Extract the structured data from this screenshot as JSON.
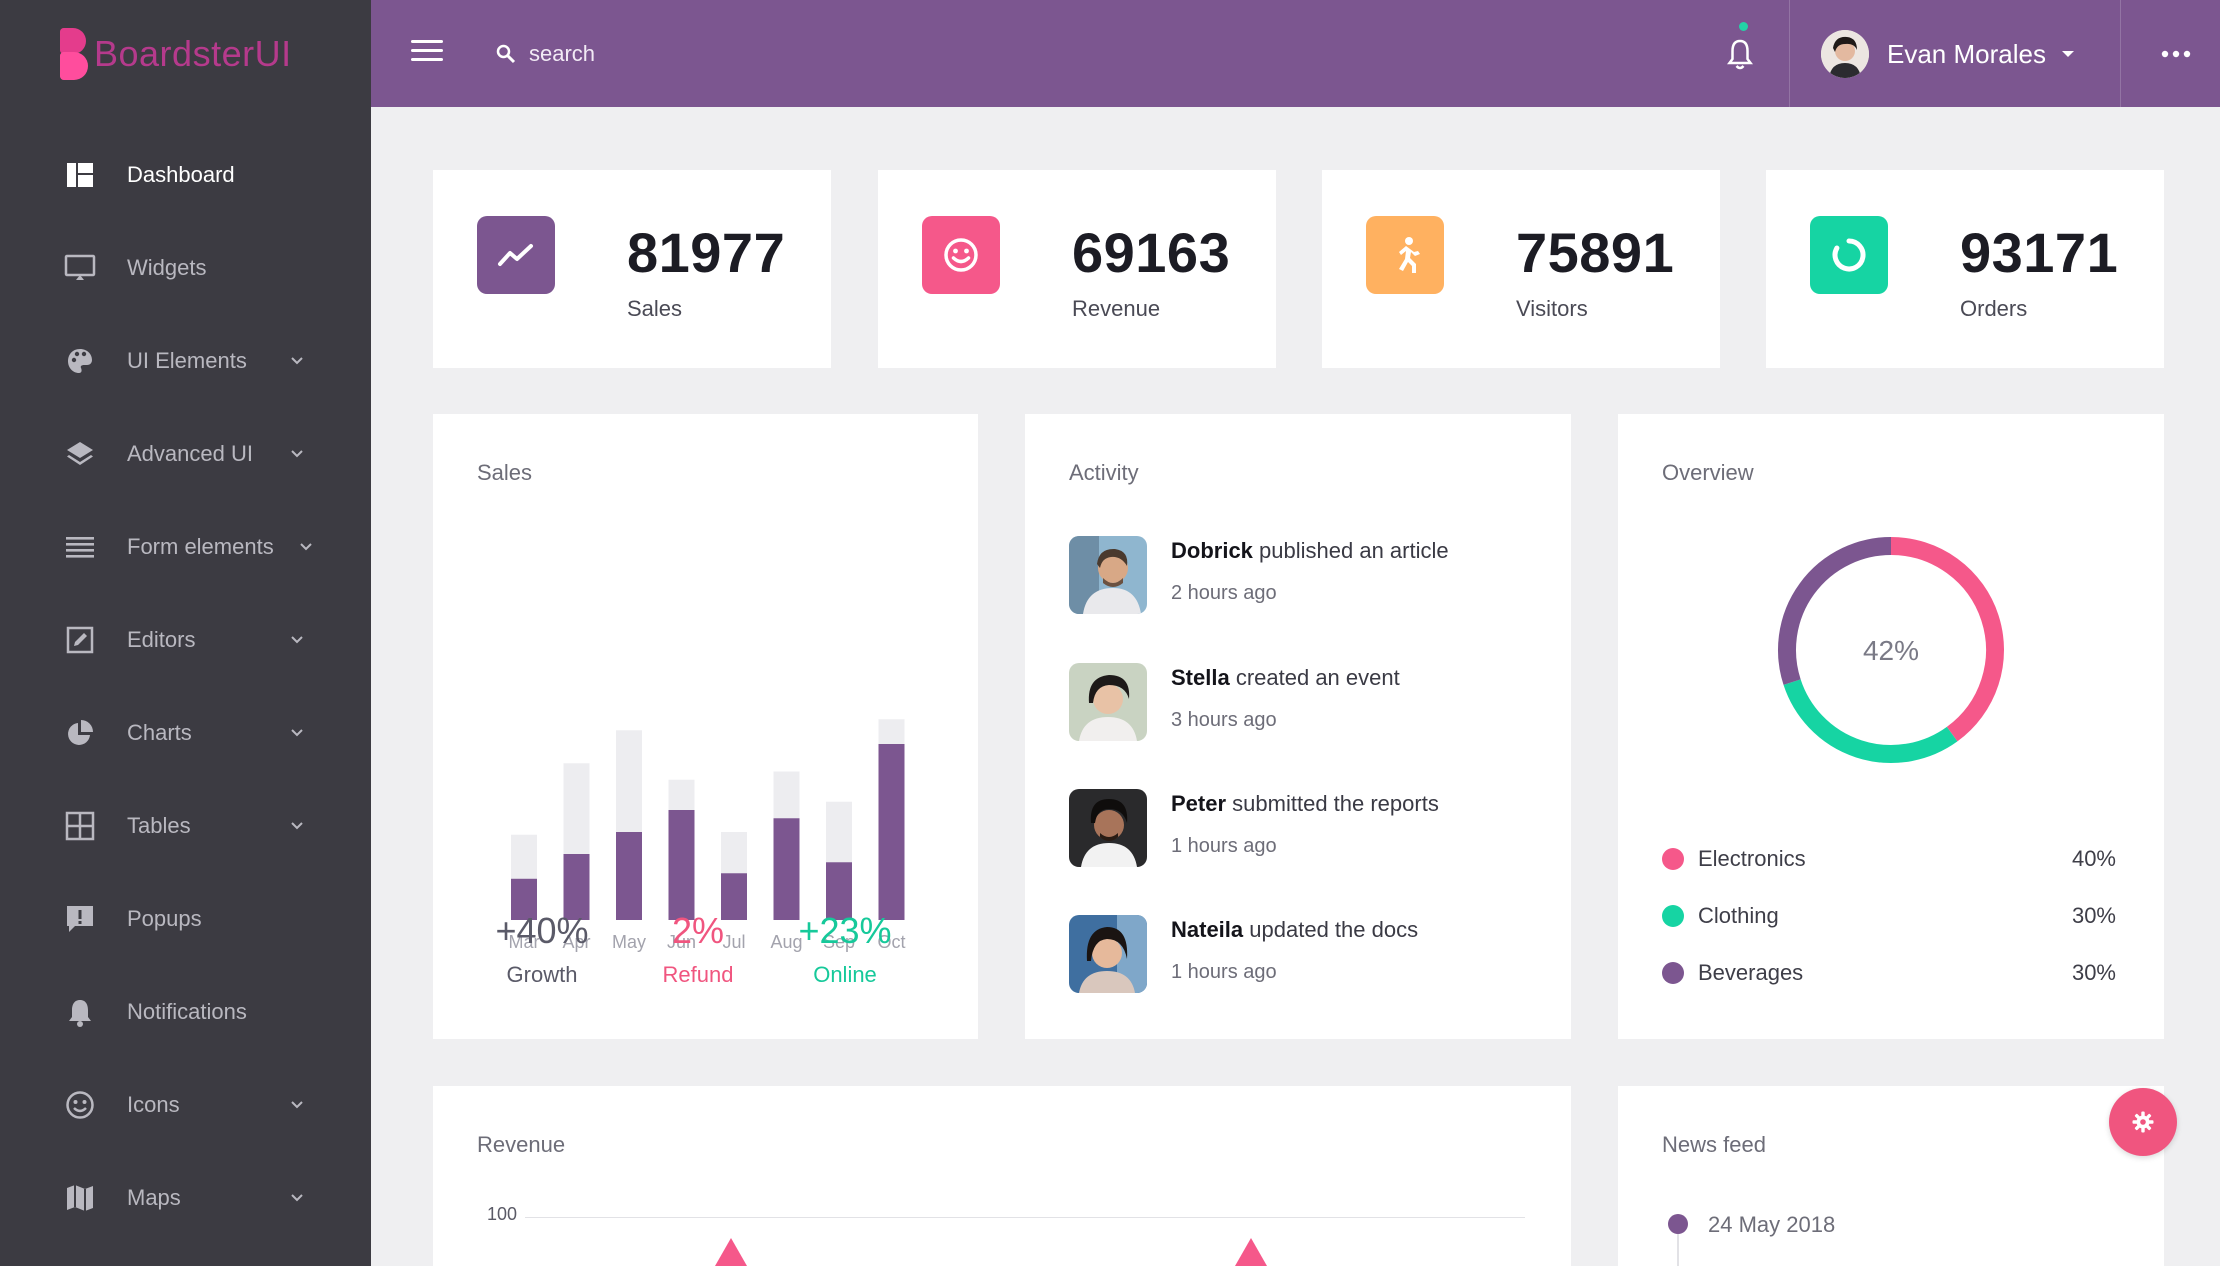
{
  "brand": {
    "name": "BoardsterUI"
  },
  "sidebar": {
    "items": [
      {
        "label": "Dashboard",
        "icon": "dashboard-icon",
        "active": true,
        "has_submenu": false
      },
      {
        "label": "Widgets",
        "icon": "monitor-icon",
        "has_submenu": false
      },
      {
        "label": "UI Elements",
        "icon": "palette-icon",
        "has_submenu": true
      },
      {
        "label": "Advanced UI",
        "icon": "layers-icon",
        "has_submenu": true
      },
      {
        "label": "Form elements",
        "icon": "list-icon",
        "has_submenu": true
      },
      {
        "label": "Editors",
        "icon": "edit-icon",
        "has_submenu": true
      },
      {
        "label": "Charts",
        "icon": "pie-chart-icon",
        "has_submenu": true
      },
      {
        "label": "Tables",
        "icon": "grid-icon",
        "has_submenu": true
      },
      {
        "label": "Popups",
        "icon": "alert-message-icon",
        "has_submenu": false
      },
      {
        "label": "Notifications",
        "icon": "bell-icon",
        "has_submenu": false
      },
      {
        "label": "Icons",
        "icon": "smiley-icon",
        "has_submenu": true
      },
      {
        "label": "Maps",
        "icon": "map-icon",
        "has_submenu": true
      }
    ]
  },
  "header": {
    "search_placeholder": "search",
    "user_name": "Evan Morales"
  },
  "stats": [
    {
      "value": "81977",
      "label": "Sales",
      "icon": "trend-up-icon",
      "color": "#7c5690"
    },
    {
      "value": "69163",
      "label": "Revenue",
      "icon": "smiley-icon",
      "color": "#f5588a"
    },
    {
      "value": "75891",
      "label": "Visitors",
      "icon": "runner-icon",
      "color": "#ffb160"
    },
    {
      "value": "93171",
      "label": "Orders",
      "icon": "ring-icon",
      "color": "#16d4a3"
    }
  ],
  "sales_card": {
    "title": "Sales",
    "metrics": [
      {
        "value": "+40%",
        "label": "Growth",
        "color": "#5a5a68"
      },
      {
        "value": "2%",
        "label": "Refund",
        "color": "#f0557f"
      },
      {
        "value": "+23%",
        "label": "Online",
        "color": "#16c99a"
      }
    ]
  },
  "activity_card": {
    "title": "Activity",
    "items": [
      {
        "name": "Dobrick",
        "action": "published an article",
        "time": "2 hours ago"
      },
      {
        "name": "Stella",
        "action": "created an event",
        "time": "3 hours ago"
      },
      {
        "name": "Peter",
        "action": "submitted the reports",
        "time": "1 hours ago"
      },
      {
        "name": "Nateila",
        "action": "updated the docs",
        "time": "1 hours ago"
      }
    ]
  },
  "overview_card": {
    "title": "Overview",
    "center_label": "42%",
    "legend": [
      {
        "name": "Electronics",
        "pct": "40%",
        "color": "#f5588a"
      },
      {
        "name": "Clothing",
        "pct": "30%",
        "color": "#16d4a3"
      },
      {
        "name": "Beverages",
        "pct": "30%",
        "color": "#7c5690"
      }
    ]
  },
  "revenue_card": {
    "title": "Revenue",
    "axis_top": "100"
  },
  "newsfeed_card": {
    "title": "News feed",
    "first_date": "24 May 2018"
  },
  "colors": {
    "accent": "#7c5690",
    "pink": "#f5588a",
    "teal": "#16d4a3",
    "orange": "#ffb160",
    "sidebar": "#3c3b42"
  },
  "chart_data": [
    {
      "type": "bar",
      "title": "Sales",
      "categories": [
        "Mar",
        "Apr",
        "May",
        "Jun",
        "Jul",
        "Aug",
        "Sep",
        "Oct"
      ],
      "series": [
        {
          "values": [
            15,
            24,
            32,
            40,
            17,
            37,
            21,
            64
          ],
          "color": "#7c5690"
        },
        {
          "values": [
            16,
            33,
            37,
            11,
            15,
            17,
            22,
            9
          ],
          "color": "#ededf0"
        }
      ],
      "stacked": true,
      "ylim": [
        0,
        80
      ],
      "grid": false
    },
    {
      "type": "pie",
      "title": "Overview",
      "labels": [
        "Electronics",
        "Clothing",
        "Beverages"
      ],
      "values": [
        40,
        30,
        30
      ],
      "colors": [
        "#f5588a",
        "#16d4a3",
        "#7c5690"
      ],
      "donut": true,
      "center_label": "42%"
    }
  ]
}
